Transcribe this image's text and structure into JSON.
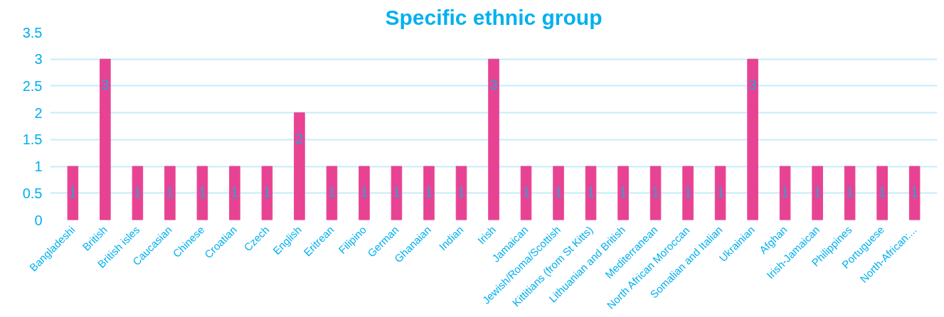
{
  "chart_data": {
    "type": "bar",
    "title": "Specific ethnic group",
    "categories": [
      "Bangladeshi",
      "British",
      "British isles",
      "Caucasian",
      "Chinese",
      "Croatian",
      "Czech",
      "English",
      "Eritrean",
      "Filipino",
      "German",
      "Ghanaian",
      "Indian",
      "Irish",
      "Jamaican",
      "Jewish/Roma/Scottish",
      "Kittitians (from St Kitts)",
      "Lithuanian and British",
      "Mediterranean",
      "North African Moroccan",
      "Somalian and Italian",
      "Ukrainian",
      "Afghan",
      "Irish-Jamaican",
      "Philippines",
      "Portuguese",
      "North-African:..."
    ],
    "values": [
      1,
      3,
      1,
      1,
      1,
      1,
      1,
      2,
      1,
      1,
      1,
      1,
      1,
      3,
      1,
      1,
      1,
      1,
      1,
      1,
      1,
      3,
      1,
      1,
      1,
      1,
      1
    ],
    "color": "#e84393",
    "ylim": [
      0,
      3.5
    ],
    "yticks": [
      0,
      0.5,
      1,
      1.5,
      2,
      2.5,
      3,
      3.5
    ],
    "grid": "y",
    "data_labels": true
  }
}
